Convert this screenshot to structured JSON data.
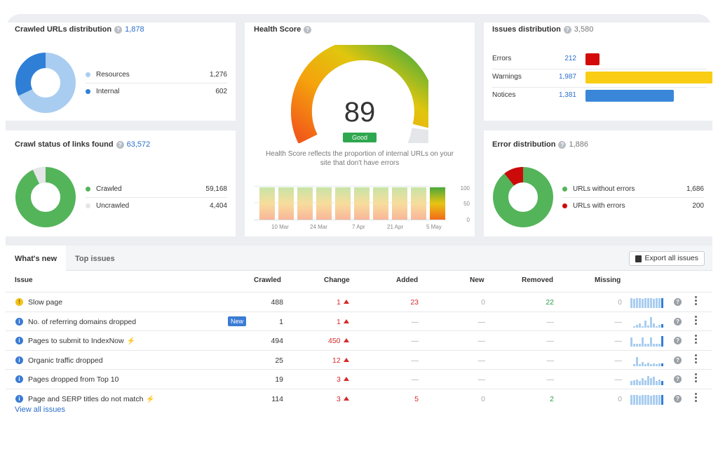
{
  "crawled_urls": {
    "title": "Crawled URLs distribution",
    "total": "1,878",
    "legend": [
      {
        "label": "Resources",
        "value": "1,276",
        "color": "#a9cdf0"
      },
      {
        "label": "Internal",
        "value": "602",
        "color": "#2f7fd6"
      }
    ]
  },
  "crawl_status": {
    "title": "Crawl status of links found",
    "total": "63,572",
    "legend": [
      {
        "label": "Crawled",
        "value": "59,168",
        "color": "#54b45a"
      },
      {
        "label": "Uncrawled",
        "value": "4,404",
        "color": "#e4e6e9"
      }
    ]
  },
  "health": {
    "title": "Health Score",
    "score": "89",
    "badge": "Good",
    "description_line1": "Health Score reflects the proportion of internal URLs on your",
    "description_line2": "site that don't have errors",
    "x_ticks": [
      "10 Mar",
      "24 Mar",
      "7 Apr",
      "21 Apr",
      "5 May"
    ],
    "y_ticks": [
      "100",
      "50",
      "0"
    ]
  },
  "issues_distribution": {
    "title": "Issues distribution",
    "total": "3,580",
    "rows": [
      {
        "label": "Errors",
        "value": "212",
        "color": "#d40a0a"
      },
      {
        "label": "Warnings",
        "value": "1,987",
        "color": "#f9cd14"
      },
      {
        "label": "Notices",
        "value": "1,381",
        "color": "#3a87d9"
      }
    ]
  },
  "error_distribution": {
    "title": "Error distribution",
    "total": "1,886",
    "legend": [
      {
        "label": "URLs without errors",
        "value": "1,686",
        "color": "#54b45a"
      },
      {
        "label": "URLs with errors",
        "value": "200",
        "color": "#cc0a0a"
      }
    ]
  },
  "issues_table": {
    "tabs": [
      "What's new",
      "Top issues"
    ],
    "export_label": "Export all issues",
    "headers": {
      "issue": "Issue",
      "crawled": "Crawled",
      "change": "Change",
      "added": "Added",
      "new": "New",
      "removed": "Removed",
      "missing": "Missing"
    },
    "rows": [
      {
        "icon": "warning",
        "name": "Slow page",
        "crawled": "488",
        "change": "1",
        "added": "23",
        "new": "0",
        "removed": "22",
        "missing": "0"
      },
      {
        "icon": "info",
        "name": "No. of referring domains dropped",
        "badge": "New",
        "crawled": "1",
        "change": "1",
        "added": "—",
        "new": "—",
        "removed": "—",
        "missing": "—"
      },
      {
        "icon": "info",
        "name": "Pages to submit to IndexNow",
        "bolt": "⚡",
        "crawled": "494",
        "change": "450",
        "added": "—",
        "new": "—",
        "removed": "—",
        "missing": "—"
      },
      {
        "icon": "info",
        "name": "Organic traffic dropped",
        "crawled": "25",
        "change": "12",
        "added": "—",
        "new": "—",
        "removed": "—",
        "missing": "—"
      },
      {
        "icon": "info",
        "name": "Pages dropped from Top 10",
        "crawled": "19",
        "change": "3",
        "added": "—",
        "new": "—",
        "removed": "—",
        "missing": "—"
      },
      {
        "icon": "info",
        "name": "Page and SERP titles do not match",
        "bolt": "⚡",
        "crawled": "114",
        "change": "3",
        "added": "5",
        "new": "0",
        "removed": "2",
        "missing": "0"
      }
    ],
    "view_all": "View all issues"
  }
}
